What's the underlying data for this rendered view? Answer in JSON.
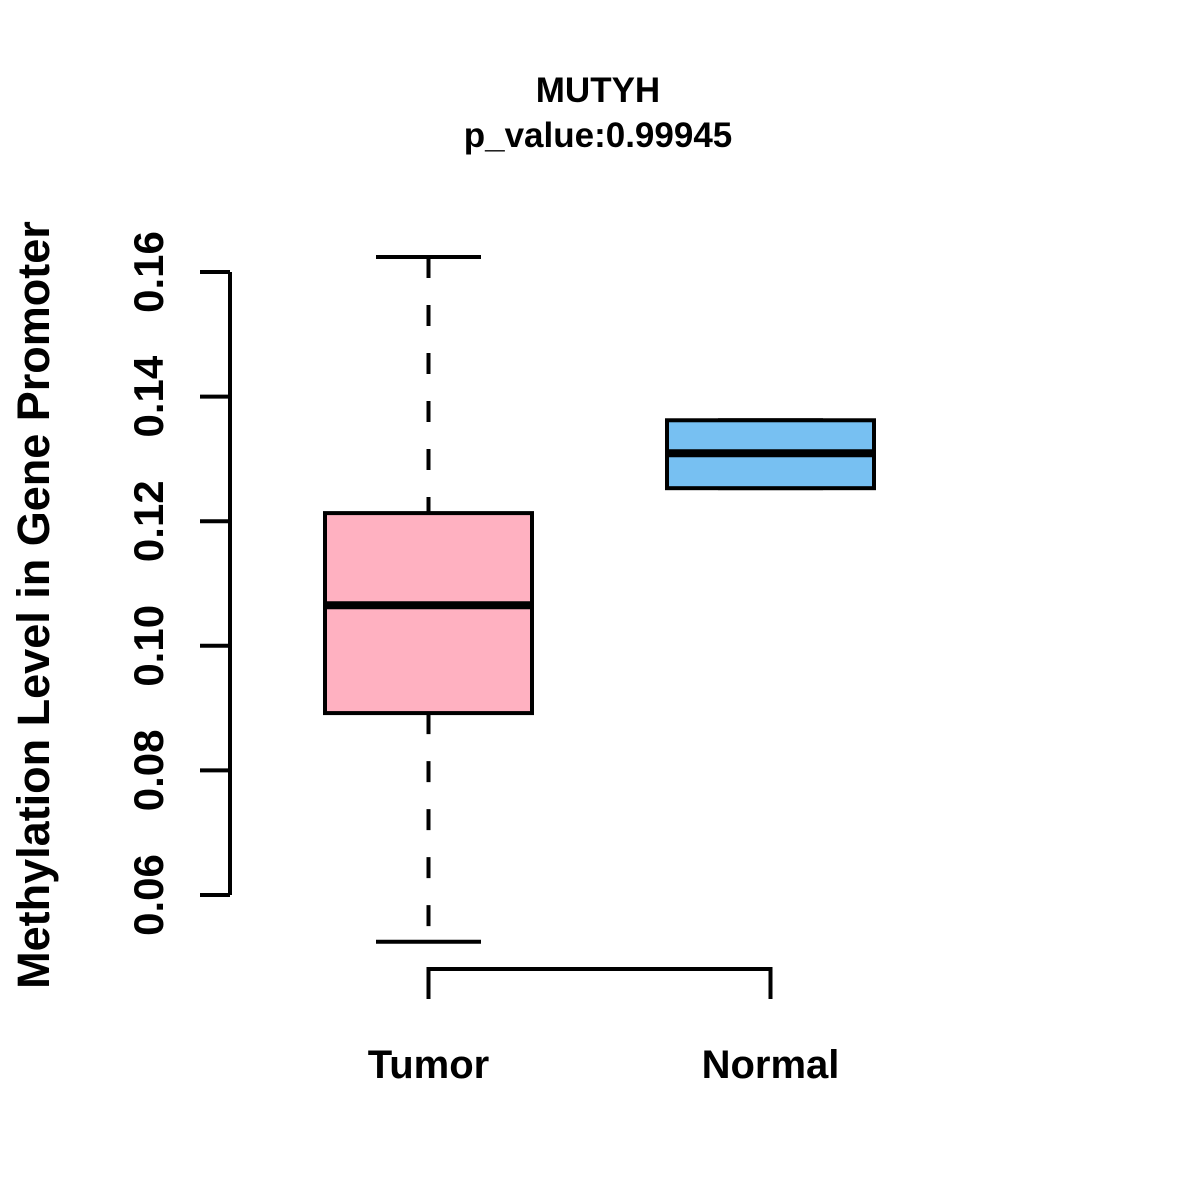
{
  "title": {
    "line1": "MUTYH",
    "line2": "p_value:0.99945"
  },
  "y_axis": {
    "label": "Methylation Level in Gene Promoter",
    "tick_labels": [
      "0.06",
      "0.08",
      "0.10",
      "0.12",
      "0.14",
      "0.16"
    ]
  },
  "x_axis": {
    "categories": [
      "Tumor",
      "Normal"
    ]
  },
  "colors": {
    "tumor_box_fill": "#FFB1C1",
    "normal_box_fill": "#77C0F2",
    "line": "#000000",
    "background": "#FFFFFF"
  },
  "chart_data": {
    "type": "boxplot",
    "title": "MUTYH",
    "subtitle": "p_value:0.99945",
    "ylabel": "Methylation Level in Gene Promoter",
    "xlabel": "",
    "categories": [
      "Tumor",
      "Normal"
    ],
    "series": [
      {
        "name": "Tumor",
        "min": 0.0525,
        "q1": 0.0892,
        "median": 0.1065,
        "q3": 0.1213,
        "max": 0.1624,
        "fill": "#FFB1C1"
      },
      {
        "name": "Normal",
        "min": 0.1253,
        "q1": 0.1253,
        "median": 0.1309,
        "q3": 0.1362,
        "max": 0.1362,
        "fill": "#77C0F2"
      }
    ],
    "ylim": [
      0.06,
      0.16
    ],
    "yticks": [
      0.06,
      0.08,
      0.1,
      0.12,
      0.14,
      0.16
    ],
    "ytick_labels": [
      "0.06",
      "0.08",
      "0.10",
      "0.12",
      "0.14",
      "0.16"
    ],
    "grid": false,
    "legend_position": "none",
    "whisker_style": "dashed"
  }
}
